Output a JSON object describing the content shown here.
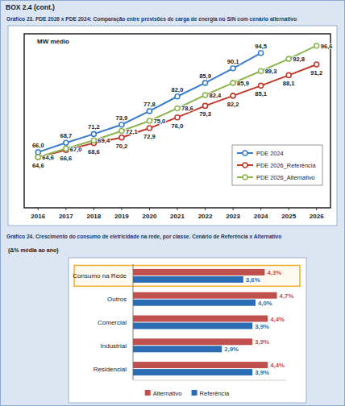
{
  "header": "BOX 2.4 (cont.)",
  "chart_data": [
    {
      "type": "line",
      "title": "Gráfico 23. PDE 2026 x PDE 2024: Comparação entre previsões de carga de energia no SIN com cenário alternativo",
      "y_label": "MW médio",
      "x": [
        2016,
        2017,
        2018,
        2019,
        2020,
        2021,
        2022,
        2023,
        2024,
        2025,
        2026
      ],
      "xlim": [
        2015.5,
        2026.5
      ],
      "xticks": [
        2016,
        2017,
        2018,
        2019,
        2020,
        2021,
        2022,
        2023,
        2024,
        2025,
        2026
      ],
      "ylim": [
        50,
        100
      ],
      "tick_labels": "x",
      "grid": false,
      "legend": "lower right",
      "data_labels": true,
      "marker": "circle",
      "series": [
        {
          "name": "PDE 2024",
          "color": "#3a7dc9",
          "values": [
            66.0,
            68.7,
            71.2,
            73.9,
            77.8,
            82.0,
            85.9,
            90.1,
            94.5,
            null,
            null
          ],
          "value_labels": [
            "66,0",
            "68,7",
            "71,2",
            "73,9",
            "77,8",
            "82,0",
            "85,9",
            "90,1",
            "94,5",
            null,
            null
          ]
        },
        {
          "name": "PDE 2026_Referência",
          "color": "#c0392b",
          "values": [
            64.6,
            66.6,
            68.6,
            70.2,
            72.9,
            76.0,
            79.3,
            82.2,
            85.1,
            88.1,
            91.2
          ],
          "value_labels": [
            "64,6",
            "66,6",
            "68,6",
            "70,2",
            "72,9",
            "76,0",
            "79,3",
            "82,2",
            "85,1",
            "88,1",
            "91,2"
          ]
        },
        {
          "name": "PDE 2026_Alternativo",
          "color": "#8db550",
          "values": [
            64.6,
            67.0,
            69.4,
            72.1,
            75.0,
            78.6,
            82.4,
            85.9,
            89.3,
            92.8,
            96.6
          ],
          "value_labels": [
            "64,6",
            "67,0",
            "69,4",
            "72,1",
            "75,0",
            "78,6",
            "82,4",
            "85,9",
            "89,3",
            "92,8",
            "96,6"
          ]
        }
      ]
    },
    {
      "type": "bar",
      "orientation": "horizontal",
      "title": "Gráfico 24. Crescimento do consumo de eletricidade na rede, por classe. Cenário de Referência x Alternativo",
      "subtitle": "(Δ% média ao ano)",
      "categories": [
        "Consumo na Rede",
        "Outros",
        "Comercial",
        "Industrial",
        "Residencial"
      ],
      "xlim": [
        0,
        5
      ],
      "tick_labels": "y",
      "grid": false,
      "legend": "bottom",
      "data_labels": true,
      "series": [
        {
          "name": "Alternativo",
          "color": "#c0504d",
          "values": [
            4.3,
            4.7,
            4.4,
            3.9,
            4.4
          ],
          "value_labels": [
            "4,3%",
            "4,7%",
            "4,4%",
            "3,9%",
            "4,4%"
          ]
        },
        {
          "name": "Referência",
          "color": "#2a6db5",
          "values": [
            3.6,
            4.0,
            3.9,
            2.9,
            3.9
          ],
          "value_labels": [
            "3,6%",
            "4,0%",
            "3,9%",
            "2,9%",
            "3,9%"
          ]
        }
      ]
    }
  ]
}
